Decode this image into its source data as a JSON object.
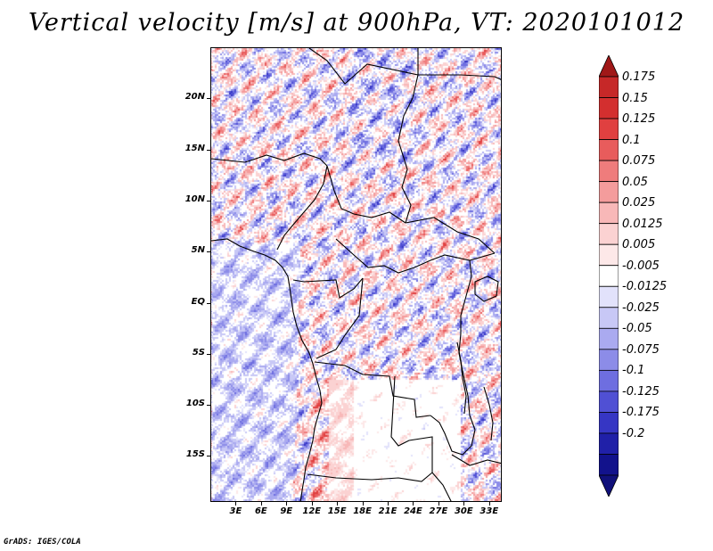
{
  "title": "Vertical velocity [m/s] at 900hPa, VT: 2020101012",
  "credit": "GrADS: IGES/COLA",
  "map": {
    "lat_labels": [
      "20N",
      "15N",
      "10N",
      "5N",
      "EQ",
      "5S",
      "10S",
      "15S"
    ],
    "lat_values": [
      20,
      15,
      10,
      5,
      0,
      -5,
      -10,
      -15
    ],
    "lon_labels": [
      "3E",
      "6E",
      "9E",
      "12E",
      "15E",
      "18E",
      "21E",
      "24E",
      "27E",
      "30E",
      "33E"
    ],
    "lon_values": [
      3,
      6,
      9,
      12,
      15,
      18,
      21,
      24,
      27,
      30,
      33
    ],
    "lon_range": [
      0,
      34.5
    ],
    "lat_range": [
      -19.5,
      25
    ]
  },
  "colorbar": {
    "labels": [
      "0.175",
      "0.15",
      "0.125",
      "0.1",
      "0.075",
      "0.05",
      "0.025",
      "0.0125",
      "0.005",
      "-0.005",
      "-0.0125",
      "-0.025",
      "-0.05",
      "-0.075",
      "-0.1",
      "-0.125",
      "-0.175",
      "-0.2"
    ],
    "colors": [
      "#c62828",
      "#d32f2f",
      "#e04040",
      "#e85c5c",
      "#ef7c7c",
      "#f49c9c",
      "#f8b8b8",
      "#fbd2d2",
      "#fde8e8",
      "#ffffff",
      "#e2e2fb",
      "#c8c8f6",
      "#aaaaf0",
      "#8c8ce8",
      "#6e6ee0",
      "#5050d4",
      "#3636c4",
      "#2020a8",
      "#12128c"
    ],
    "top_arrow_color": "#a01818",
    "bottom_arrow_color": "#10107a"
  }
}
